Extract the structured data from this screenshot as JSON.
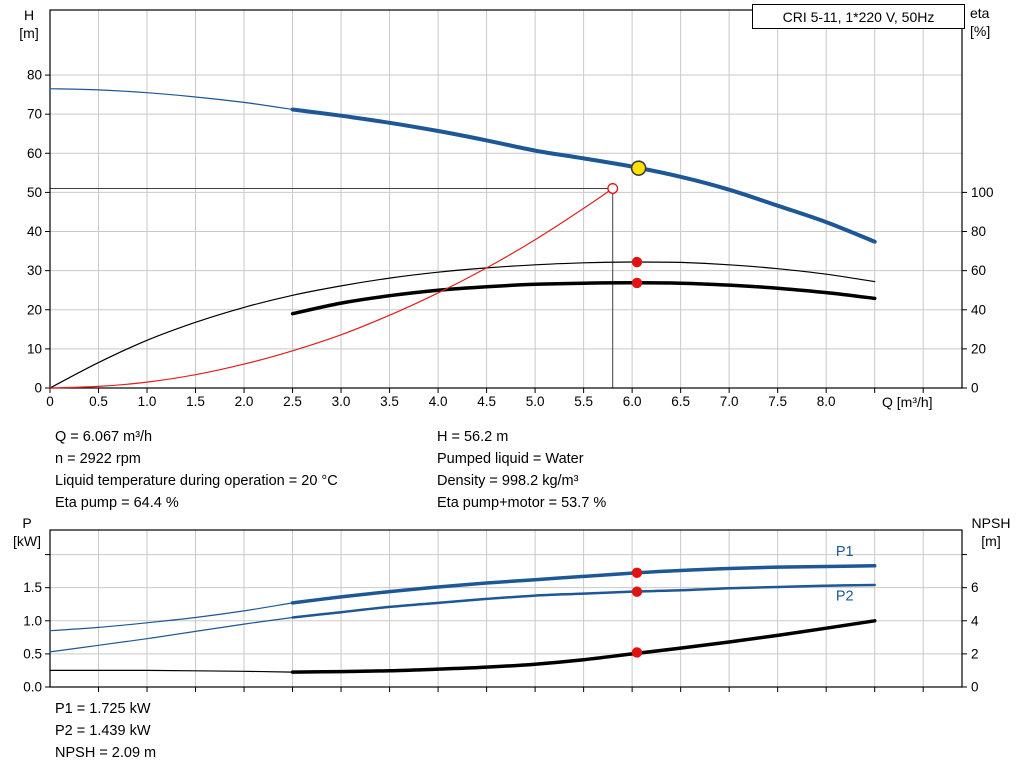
{
  "colors": {
    "curve_blue": "#1e5796",
    "curve_black": "#000000",
    "curve_red": "#df1f1f",
    "marker_red": "#e01212",
    "marker_yellow": "#ffe200",
    "grid": "#c9c9c9",
    "ref_line": "#3f3f3f"
  },
  "annotations": {
    "top_left": [
      "Q = 6.067 m³/h",
      "n = 2922 rpm",
      "Liquid temperature during operation = 20 °C",
      "Eta pump = 64.4 %"
    ],
    "top_right": [
      "H = 56.2 m",
      "Pumped liquid = Water",
      "Density = 998.2 kg/m³",
      "Eta pump+motor = 53.7 %"
    ],
    "bottom": [
      "P1 = 1.725 kW",
      "P2 = 1.439 kW",
      "NPSH = 2.09 m"
    ]
  },
  "chart_data": [
    {
      "type": "line",
      "name": "qh-eta-chart",
      "title": "CRI 5-11, 1*220 V, 50Hz",
      "xlabel": "Q [m³/h]",
      "left_axis": {
        "label": "H",
        "unit": "[m]",
        "ticks": [
          {
            "v": 0,
            "label": "0"
          },
          {
            "v": 10,
            "label": "10"
          },
          {
            "v": 20,
            "label": "20"
          },
          {
            "v": 30,
            "label": "30"
          },
          {
            "v": 40,
            "label": "40"
          },
          {
            "v": 50,
            "label": "50"
          },
          {
            "v": 60,
            "label": "60"
          },
          {
            "v": 70,
            "label": "70"
          },
          {
            "v": 80,
            "label": "80"
          }
        ]
      },
      "right_axis": {
        "label": "eta",
        "unit": "[%]",
        "left_equiv_factor": 0.5,
        "ticks": [
          {
            "v": 0,
            "label": "0"
          },
          {
            "v": 20,
            "label": "20"
          },
          {
            "v": 40,
            "label": "40"
          },
          {
            "v": 60,
            "label": "60"
          },
          {
            "v": 80,
            "label": "80"
          },
          {
            "v": 100,
            "label": "100"
          }
        ]
      },
      "x_ticks": [
        {
          "v": 0,
          "label": "0"
        },
        {
          "v": 0.5,
          "label": "0.5"
        },
        {
          "v": 1,
          "label": "1.0"
        },
        {
          "v": 1.5,
          "label": "1.5"
        },
        {
          "v": 2,
          "label": "2.0"
        },
        {
          "v": 2.5,
          "label": "2.5"
        },
        {
          "v": 3,
          "label": "3.0"
        },
        {
          "v": 3.5,
          "label": "3.5"
        },
        {
          "v": 4,
          "label": "4.0"
        },
        {
          "v": 4.5,
          "label": "4.5"
        },
        {
          "v": 5,
          "label": "5.0"
        },
        {
          "v": 5.5,
          "label": "5.5"
        },
        {
          "v": 6,
          "label": "6.0"
        },
        {
          "v": 6.5,
          "label": "6.5"
        },
        {
          "v": 7,
          "label": "7.0"
        },
        {
          "v": 7.5,
          "label": "7.5"
        },
        {
          "v": 8,
          "label": "8.0"
        },
        {
          "v": 8.5,
          "label": ""
        },
        {
          "v": 9,
          "label": ""
        }
      ],
      "series": [
        {
          "name": "hq-curve-thin",
          "color": "curve_blue",
          "width": 1.2,
          "axis": "left",
          "points": [
            [
              0,
              76.5
            ],
            [
              0.5,
              76.2
            ],
            [
              1,
              75.5
            ],
            [
              1.5,
              74.4
            ],
            [
              2,
              73.0
            ],
            [
              2.5,
              71.2
            ]
          ]
        },
        {
          "name": "hq-curve-thick",
          "color": "curve_blue",
          "width": 4,
          "axis": "left",
          "points": [
            [
              2.5,
              71.2
            ],
            [
              3,
              69.6
            ],
            [
              3.5,
              67.8
            ],
            [
              4,
              65.7
            ],
            [
              4.5,
              63.3
            ],
            [
              5,
              60.7
            ],
            [
              5.5,
              58.7
            ],
            [
              6,
              56.6
            ],
            [
              6.5,
              54.0
            ],
            [
              7,
              50.7
            ],
            [
              7.5,
              46.6
            ],
            [
              8,
              42.4
            ],
            [
              8.5,
              37.4
            ]
          ]
        },
        {
          "name": "eta-pump-curve",
          "color": "curve_black",
          "width": 1.2,
          "axis": "right",
          "points": [
            [
              0,
              0
            ],
            [
              0.5,
              13.0
            ],
            [
              1,
              24.4
            ],
            [
              1.5,
              33.6
            ],
            [
              2,
              41.2
            ],
            [
              2.5,
              47.4
            ],
            [
              3,
              52.2
            ],
            [
              3.5,
              56.2
            ],
            [
              4,
              59.2
            ],
            [
              4.5,
              61.4
            ],
            [
              5,
              63.0
            ],
            [
              5.5,
              64.0
            ],
            [
              6,
              64.4
            ],
            [
              6.5,
              64.2
            ],
            [
              7,
              63.0
            ],
            [
              7.5,
              61.0
            ],
            [
              8,
              58.2
            ],
            [
              8.5,
              54.4
            ]
          ]
        },
        {
          "name": "eta-pump-motor-curve",
          "color": "curve_black",
          "width": 3.5,
          "axis": "right",
          "points": [
            [
              2.5,
              38.0
            ],
            [
              3,
              43.4
            ],
            [
              3.5,
              47.2
            ],
            [
              4,
              50.0
            ],
            [
              4.5,
              51.8
            ],
            [
              5,
              53.0
            ],
            [
              5.5,
              53.6
            ],
            [
              6,
              53.8
            ],
            [
              6.5,
              53.6
            ],
            [
              7,
              52.6
            ],
            [
              7.5,
              51.0
            ],
            [
              8,
              48.8
            ],
            [
              8.5,
              45.8
            ]
          ]
        },
        {
          "name": "system-resistance-curve",
          "color": "curve_red",
          "width": 1.2,
          "axis": "left",
          "points": [
            [
              0,
              0
            ],
            [
              0.5,
              0.4
            ],
            [
              1,
              1.5
            ],
            [
              1.5,
              3.4
            ],
            [
              2,
              6.1
            ],
            [
              2.5,
              9.5
            ],
            [
              3,
              13.6
            ],
            [
              3.5,
              18.6
            ],
            [
              4,
              24.3
            ],
            [
              4.5,
              30.7
            ],
            [
              5,
              37.9
            ],
            [
              5.5,
              45.9
            ],
            [
              5.8,
              51.0
            ]
          ]
        }
      ],
      "ref_lines": [
        {
          "type": "vline",
          "x": 5.8,
          "from": 0,
          "to": 51.0
        },
        {
          "type": "hline",
          "y": 51.0,
          "from": 0,
          "to": 5.8
        }
      ],
      "markers": [
        {
          "name": "requested-duty-point",
          "style": "open-red",
          "x": 5.8,
          "value": 51.0,
          "axis": "left",
          "interactable": true
        },
        {
          "name": "operating-point",
          "style": "yellow-dot",
          "x": 6.067,
          "value": 56.2,
          "axis": "left",
          "interactable": true
        },
        {
          "name": "eta-pump-point",
          "style": "red-dot",
          "x": 6.05,
          "value": 64.4,
          "axis": "right",
          "interactable": false
        },
        {
          "name": "eta-pump-motor-point",
          "style": "red-dot",
          "x": 6.05,
          "value": 53.7,
          "axis": "right",
          "interactable": false
        }
      ]
    },
    {
      "type": "line",
      "name": "power-npsh-chart",
      "xlabel": "",
      "left_axis": {
        "label": "P",
        "unit": "[kW]",
        "ticks": [
          {
            "v": 0,
            "label": "0.0"
          },
          {
            "v": 0.5,
            "label": "0.5"
          },
          {
            "v": 1,
            "label": "1.0"
          },
          {
            "v": 1.5,
            "label": "1.5"
          },
          {
            "v": 2,
            "label": ""
          }
        ]
      },
      "right_axis": {
        "label": "NPSH",
        "unit": "[m]",
        "left_equiv_factor": 0.25,
        "ticks": [
          {
            "v": 0,
            "label": "0"
          },
          {
            "v": 2,
            "label": "2"
          },
          {
            "v": 4,
            "label": "4"
          },
          {
            "v": 6,
            "label": "6"
          },
          {
            "v": 8,
            "label": ""
          }
        ]
      },
      "x_ticks": [
        {
          "v": 0.5,
          "label": ""
        },
        {
          "v": 1,
          "label": ""
        },
        {
          "v": 1.5,
          "label": ""
        },
        {
          "v": 2,
          "label": ""
        },
        {
          "v": 2.5,
          "label": ""
        },
        {
          "v": 3,
          "label": ""
        },
        {
          "v": 3.5,
          "label": ""
        },
        {
          "v": 4,
          "label": ""
        },
        {
          "v": 4.5,
          "label": ""
        },
        {
          "v": 5,
          "label": ""
        },
        {
          "v": 5.5,
          "label": ""
        },
        {
          "v": 6,
          "label": ""
        },
        {
          "v": 6.5,
          "label": ""
        },
        {
          "v": 7,
          "label": ""
        },
        {
          "v": 7.5,
          "label": ""
        },
        {
          "v": 8,
          "label": ""
        },
        {
          "v": 8.5,
          "label": ""
        },
        {
          "v": 9,
          "label": ""
        }
      ],
      "series": [
        {
          "name": "p1-curve-thin",
          "color": "curve_blue",
          "width": 1.2,
          "axis": "left",
          "points": [
            [
              0,
              0.85
            ],
            [
              0.5,
              0.9
            ],
            [
              1,
              0.97
            ],
            [
              1.5,
              1.05
            ],
            [
              2,
              1.15
            ],
            [
              2.5,
              1.27
            ]
          ]
        },
        {
          "name": "p1-curve-thick",
          "color": "curve_blue",
          "width": 3.5,
          "axis": "left",
          "label": {
            "text": "P1",
            "x": 8.1,
            "y": 1.98
          },
          "points": [
            [
              2.5,
              1.27
            ],
            [
              3,
              1.36
            ],
            [
              3.5,
              1.44
            ],
            [
              4,
              1.51
            ],
            [
              4.5,
              1.57
            ],
            [
              5,
              1.62
            ],
            [
              5.5,
              1.67
            ],
            [
              6,
              1.72
            ],
            [
              6.5,
              1.76
            ],
            [
              7,
              1.79
            ],
            [
              7.5,
              1.81
            ],
            [
              8,
              1.82
            ],
            [
              8.5,
              1.83
            ]
          ]
        },
        {
          "name": "p2-curve-thin",
          "color": "curve_blue",
          "width": 1.2,
          "axis": "left",
          "points": [
            [
              0,
              0.53
            ],
            [
              0.5,
              0.63
            ],
            [
              1,
              0.73
            ],
            [
              1.5,
              0.84
            ],
            [
              2,
              0.95
            ],
            [
              2.5,
              1.05
            ]
          ]
        },
        {
          "name": "p2-curve-thick",
          "color": "curve_blue",
          "width": 2.5,
          "axis": "left",
          "label": {
            "text": "P2",
            "x": 8.1,
            "y": 1.31
          },
          "points": [
            [
              2.5,
              1.05
            ],
            [
              3,
              1.13
            ],
            [
              3.5,
              1.21
            ],
            [
              4,
              1.27
            ],
            [
              4.5,
              1.33
            ],
            [
              5,
              1.38
            ],
            [
              5.5,
              1.41
            ],
            [
              6,
              1.44
            ],
            [
              6.5,
              1.46
            ],
            [
              7,
              1.49
            ],
            [
              7.5,
              1.51
            ],
            [
              8,
              1.53
            ],
            [
              8.5,
              1.54
            ]
          ]
        },
        {
          "name": "npsh-curve-thin",
          "color": "curve_black",
          "width": 1.2,
          "axis": "right",
          "points": [
            [
              0,
              1.0
            ],
            [
              0.5,
              1.0
            ],
            [
              1,
              1.0
            ],
            [
              1.5,
              0.98
            ],
            [
              2,
              0.95
            ],
            [
              2.5,
              0.9
            ]
          ]
        },
        {
          "name": "npsh-curve-thick",
          "color": "curve_black",
          "width": 3.5,
          "axis": "right",
          "points": [
            [
              2.5,
              0.9
            ],
            [
              3,
              0.93
            ],
            [
              3.5,
              0.98
            ],
            [
              4,
              1.08
            ],
            [
              4.5,
              1.2
            ],
            [
              5,
              1.38
            ],
            [
              5.5,
              1.65
            ],
            [
              6,
              2.0
            ],
            [
              6.5,
              2.35
            ],
            [
              7,
              2.72
            ],
            [
              7.5,
              3.12
            ],
            [
              8,
              3.55
            ],
            [
              8.5,
              4.0
            ]
          ]
        }
      ],
      "ref_lines": [],
      "markers": [
        {
          "name": "p1-point",
          "style": "red-dot",
          "x": 6.05,
          "value": 1.725,
          "axis": "left",
          "interactable": false
        },
        {
          "name": "p2-point",
          "style": "red-dot",
          "x": 6.05,
          "value": 1.439,
          "axis": "left",
          "interactable": false
        },
        {
          "name": "npsh-point",
          "style": "red-dot",
          "x": 6.05,
          "value": 2.09,
          "axis": "right",
          "interactable": false
        }
      ]
    }
  ]
}
